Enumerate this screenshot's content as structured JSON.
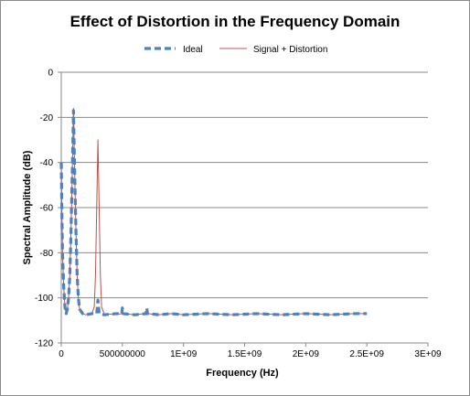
{
  "chart_data": {
    "type": "line",
    "title": "Effect of Distortion in the Frequency Domain",
    "xlabel": "Frequency (Hz)",
    "ylabel": "Spectral Amplitude (dB)",
    "xlim": [
      0,
      3000000000
    ],
    "ylim": [
      -120,
      0
    ],
    "x_ticks": [
      0,
      500000000,
      1000000000,
      1500000000,
      2000000000,
      2500000000,
      3000000000
    ],
    "x_tick_labels": [
      "0",
      "500000000",
      "1E+09",
      "1.5E+09",
      "2E+09",
      "2.5E+09",
      "3E+09"
    ],
    "y_ticks": [
      0,
      -20,
      -40,
      -60,
      -80,
      -100,
      -120
    ],
    "y_tick_labels": [
      "0",
      "-20",
      "-40",
      "-60",
      "-80",
      "-100",
      "-120"
    ],
    "grid": "horizontal",
    "legend_position": "top",
    "series": [
      {
        "name": "Ideal",
        "color": "#4f81bd",
        "style": "dashed",
        "points": [
          [
            0,
            -40
          ],
          [
            5000000,
            -62
          ],
          [
            10000000,
            -80
          ],
          [
            20000000,
            -95
          ],
          [
            30000000,
            -104
          ],
          [
            40000000,
            -107
          ],
          [
            50000000,
            -105
          ],
          [
            60000000,
            -100
          ],
          [
            70000000,
            -90
          ],
          [
            80000000,
            -70
          ],
          [
            90000000,
            -45
          ],
          [
            100000000,
            -17
          ],
          [
            110000000,
            -45
          ],
          [
            120000000,
            -70
          ],
          [
            130000000,
            -90
          ],
          [
            140000000,
            -100
          ],
          [
            150000000,
            -105
          ],
          [
            175000000,
            -107
          ],
          [
            200000000,
            -107.5
          ],
          [
            250000000,
            -107
          ],
          [
            290000000,
            -107
          ],
          [
            300000000,
            -101
          ],
          [
            310000000,
            -107
          ],
          [
            350000000,
            -107.5
          ],
          [
            450000000,
            -107
          ],
          [
            495000000,
            -107
          ],
          [
            500000000,
            -104.5
          ],
          [
            505000000,
            -107
          ],
          [
            600000000,
            -107.5
          ],
          [
            695000000,
            -107
          ],
          [
            700000000,
            -104.5
          ],
          [
            705000000,
            -107
          ],
          [
            800000000,
            -107.5
          ],
          [
            900000000,
            -107
          ],
          [
            1000000000,
            -107.5
          ],
          [
            1200000000,
            -107
          ],
          [
            1400000000,
            -107.5
          ],
          [
            1600000000,
            -107
          ],
          [
            1800000000,
            -107.5
          ],
          [
            2000000000,
            -107
          ],
          [
            2200000000,
            -107.5
          ],
          [
            2400000000,
            -107
          ],
          [
            2500000000,
            -107
          ]
        ]
      },
      {
        "name": "Signal + Distortion",
        "color": "#c0504d",
        "style": "solid",
        "points": [
          [
            0,
            -40
          ],
          [
            5000000,
            -62
          ],
          [
            10000000,
            -80
          ],
          [
            20000000,
            -95
          ],
          [
            30000000,
            -104
          ],
          [
            40000000,
            -107
          ],
          [
            50000000,
            -105
          ],
          [
            60000000,
            -100
          ],
          [
            70000000,
            -90
          ],
          [
            80000000,
            -70
          ],
          [
            90000000,
            -45
          ],
          [
            100000000,
            -16
          ],
          [
            110000000,
            -45
          ],
          [
            120000000,
            -70
          ],
          [
            130000000,
            -90
          ],
          [
            140000000,
            -100
          ],
          [
            150000000,
            -105
          ],
          [
            175000000,
            -107
          ],
          [
            200000000,
            -107.5
          ],
          [
            250000000,
            -107
          ],
          [
            270000000,
            -104
          ],
          [
            280000000,
            -90
          ],
          [
            290000000,
            -60
          ],
          [
            300000000,
            -30
          ],
          [
            310000000,
            -60
          ],
          [
            320000000,
            -90
          ],
          [
            330000000,
            -104
          ],
          [
            350000000,
            -107
          ],
          [
            450000000,
            -107.5
          ],
          [
            495000000,
            -107
          ],
          [
            500000000,
            -105
          ],
          [
            505000000,
            -107
          ],
          [
            600000000,
            -107.5
          ],
          [
            695000000,
            -107
          ],
          [
            700000000,
            -105
          ],
          [
            705000000,
            -107
          ],
          [
            800000000,
            -107.5
          ],
          [
            900000000,
            -107
          ],
          [
            1000000000,
            -107.5
          ],
          [
            1200000000,
            -107
          ],
          [
            1400000000,
            -107.5
          ],
          [
            1600000000,
            -107
          ],
          [
            1800000000,
            -107.5
          ],
          [
            2000000000,
            -107
          ],
          [
            2200000000,
            -107.5
          ],
          [
            2400000000,
            -107
          ],
          [
            2500000000,
            -107
          ]
        ]
      }
    ]
  }
}
